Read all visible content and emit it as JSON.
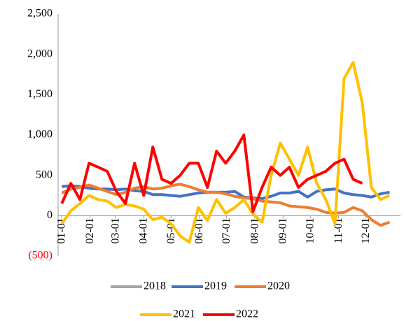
{
  "chart_data": {
    "type": "line",
    "x": [
      0,
      10,
      20,
      30,
      40,
      50,
      60,
      70,
      80,
      90,
      100,
      110,
      120,
      130,
      140,
      150,
      160,
      170,
      180,
      190,
      200,
      210,
      220,
      230,
      240,
      250,
      260,
      270,
      280,
      290,
      300,
      310,
      320,
      330,
      340,
      350,
      360
    ],
    "xlim": [
      -4,
      372
    ],
    "xticks": [
      {
        "value": 0,
        "label": "01-01"
      },
      {
        "value": 31,
        "label": "02-01"
      },
      {
        "value": 59,
        "label": "03-01"
      },
      {
        "value": 90,
        "label": "04-01"
      },
      {
        "value": 120,
        "label": "05-01"
      },
      {
        "value": 151,
        "label": "06-01"
      },
      {
        "value": 181,
        "label": "07-01"
      },
      {
        "value": 212,
        "label": "08-01"
      },
      {
        "value": 243,
        "label": "09-01"
      },
      {
        "value": 273,
        "label": "10-01"
      },
      {
        "value": 304,
        "label": "11-01"
      },
      {
        "value": 334,
        "label": "12-01"
      }
    ],
    "ylim": [
      -500,
      2500
    ],
    "yticks": [
      {
        "value": 2500,
        "label": "2,500"
      },
      {
        "value": 2000,
        "label": "2,000"
      },
      {
        "value": 1500,
        "label": "1,500"
      },
      {
        "value": 1000,
        "label": "1,000"
      },
      500,
      0,
      {
        "value": -500,
        "label": "(500)"
      }
    ],
    "negative_label_color": "#ff0000",
    "series": [
      {
        "name": "2018",
        "color": "#a5a5a5",
        "values": [
          null,
          null,
          null,
          null,
          null,
          null,
          null,
          null,
          null,
          null,
          null,
          null,
          null,
          null,
          null,
          null,
          null,
          null,
          null,
          null,
          null,
          null,
          null,
          null,
          null,
          null,
          null,
          null,
          null,
          null,
          null,
          null,
          null,
          null,
          null,
          null,
          null
        ]
      },
      {
        "name": "2019",
        "color": "#4472c4",
        "values": [
          360,
          370,
          360,
          340,
          330,
          330,
          320,
          330,
          310,
          300,
          260,
          260,
          250,
          240,
          260,
          280,
          290,
          290,
          290,
          300,
          230,
          220,
          210,
          240,
          280,
          280,
          300,
          230,
          300,
          320,
          330,
          280,
          260,
          250,
          230,
          270,
          290
        ]
      },
      {
        "name": "2020",
        "color": "#ed7d31",
        "values": [
          280,
          330,
          350,
          380,
          340,
          300,
          260,
          290,
          340,
          360,
          330,
          340,
          370,
          390,
          360,
          320,
          290,
          290,
          270,
          240,
          220,
          210,
          180,
          170,
          160,
          120,
          110,
          100,
          80,
          40,
          30,
          40,
          100,
          60,
          -50,
          -120,
          -80
        ]
      },
      {
        "name": "2021",
        "color": "#ffc000",
        "values": [
          -100,
          60,
          150,
          250,
          200,
          180,
          100,
          140,
          120,
          80,
          -50,
          -20,
          -100,
          -250,
          -330,
          100,
          -60,
          200,
          30,
          100,
          200,
          20,
          -80,
          500,
          900,
          700,
          500,
          850,
          400,
          200,
          -100,
          1700,
          1900,
          1400,
          350,
          200,
          250
        ]
      },
      {
        "name": "2022",
        "color": "#ff0000",
        "values": [
          150,
          400,
          200,
          650,
          600,
          550,
          300,
          150,
          650,
          250,
          850,
          450,
          400,
          500,
          650,
          650,
          350,
          800,
          650,
          800,
          1000,
          50,
          350,
          600,
          500,
          600,
          350,
          450,
          500,
          550,
          650,
          700,
          450,
          400,
          null,
          null,
          null
        ]
      }
    ]
  }
}
